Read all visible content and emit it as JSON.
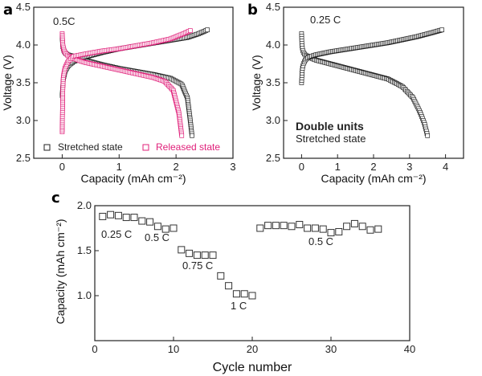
{
  "panels": [
    {
      "label": "a",
      "annotation": "0.5C",
      "xlabel": "Capacity (mAh cm⁻²)",
      "ylabel": "Voltage (V)",
      "legend": [
        {
          "name": "Stretched state",
          "color": "#222222"
        },
        {
          "name": "Released state",
          "color": "#e0207a"
        }
      ]
    },
    {
      "label": "b",
      "annotation": "0.25 C",
      "note_bold": "Double units",
      "note": "Stretched state",
      "xlabel": "Capacity (mAh cm⁻²)",
      "ylabel": "Voltage (V)"
    },
    {
      "label": "c",
      "xlabel": "Cycle number",
      "ylabel": "Capacity (mAh cm⁻²)",
      "rate_labels": [
        "0.25 C",
        "0.5 C",
        "0.75 C",
        "1 C",
        "0.5 C"
      ]
    }
  ],
  "chart_data": [
    {
      "type": "scatter",
      "panel": "a",
      "xlim": [
        -0.5,
        3
      ],
      "ylim": [
        2.5,
        4.5
      ],
      "xticks": [
        0,
        1,
        2,
        3
      ],
      "yticks": [
        2.5,
        3.0,
        3.5,
        4.0,
        4.5
      ],
      "series": [
        {
          "name": "Stretched state",
          "color": "#222222",
          "curves": [
            {
              "x": [
                0,
                0.01,
                0.03,
                0.06,
                0.1,
                0.2,
                0.4,
                0.7,
                1.0,
                1.3,
                1.6,
                1.9,
                2.1,
                2.2,
                2.25,
                2.28
              ],
              "y": [
                4.1,
                3.98,
                3.92,
                3.89,
                3.87,
                3.85,
                3.8,
                3.74,
                3.69,
                3.65,
                3.61,
                3.56,
                3.48,
                3.3,
                3.0,
                2.8
              ]
            },
            {
              "x": [
                0,
                0.01,
                0.02,
                0.05,
                0.1,
                0.2,
                0.4,
                0.7,
                1.0,
                1.4,
                1.8,
                2.2,
                2.4,
                2.55
              ],
              "y": [
                3.33,
                3.45,
                3.55,
                3.65,
                3.72,
                3.78,
                3.84,
                3.9,
                3.95,
                4.0,
                4.05,
                4.1,
                4.15,
                4.2
              ]
            }
          ]
        },
        {
          "name": "Released state",
          "color": "#e0207a",
          "curves": [
            {
              "x": [
                0,
                0.01,
                0.03,
                0.06,
                0.1,
                0.2,
                0.4,
                0.7,
                1.0,
                1.3,
                1.6,
                1.8,
                1.95,
                2.05,
                2.1
              ],
              "y": [
                4.15,
                4.0,
                3.93,
                3.89,
                3.86,
                3.82,
                3.77,
                3.72,
                3.67,
                3.62,
                3.57,
                3.52,
                3.4,
                3.1,
                2.8
              ]
            },
            {
              "x": [
                0,
                0.01,
                0.02,
                0.05,
                0.1,
                0.2,
                0.4,
                0.7,
                1.0,
                1.3,
                1.6,
                1.9,
                2.1,
                2.25
              ],
              "y": [
                2.85,
                3.4,
                3.58,
                3.7,
                3.78,
                3.85,
                3.88,
                3.92,
                3.95,
                3.99,
                4.03,
                4.08,
                4.14,
                4.19
              ]
            }
          ]
        }
      ]
    },
    {
      "type": "scatter",
      "panel": "b",
      "xlim": [
        -0.5,
        4.5
      ],
      "ylim": [
        2.5,
        4.5
      ],
      "xticks": [
        0,
        1,
        2,
        3,
        4
      ],
      "yticks": [
        2.5,
        3.0,
        3.5,
        4.0,
        4.5
      ],
      "series": [
        {
          "name": "Stretched state",
          "color": "#222222",
          "curves": [
            {
              "x": [
                0,
                0.01,
                0.03,
                0.06,
                0.1,
                0.2,
                0.4,
                0.8,
                1.2,
                1.6,
                2.0,
                2.4,
                2.8,
                3.1,
                3.3,
                3.42,
                3.5
              ],
              "y": [
                4.15,
                4.0,
                3.93,
                3.89,
                3.87,
                3.84,
                3.8,
                3.75,
                3.7,
                3.65,
                3.6,
                3.55,
                3.45,
                3.3,
                3.1,
                2.95,
                2.8
              ]
            },
            {
              "x": [
                0,
                0.01,
                0.02,
                0.05,
                0.1,
                0.2,
                0.4,
                0.8,
                1.2,
                1.6,
                2.0,
                2.4,
                2.8,
                3.2,
                3.6,
                3.9
              ],
              "y": [
                3.5,
                3.6,
                3.68,
                3.75,
                3.8,
                3.84,
                3.87,
                3.91,
                3.94,
                3.97,
                4.0,
                4.03,
                4.07,
                4.11,
                4.16,
                4.2
              ]
            }
          ]
        }
      ]
    },
    {
      "type": "scatter",
      "panel": "c",
      "xlim": [
        0,
        40
      ],
      "ylim": [
        0.5,
        2.0
      ],
      "xticks": [
        0,
        10,
        20,
        30,
        40
      ],
      "yticks": [
        1.0,
        1.5,
        2.0
      ],
      "x": [
        1,
        2,
        3,
        4,
        5,
        6,
        7,
        8,
        9,
        10,
        11,
        12,
        13,
        14,
        15,
        16,
        17,
        18,
        19,
        20,
        21,
        22,
        23,
        24,
        25,
        26,
        27,
        28,
        29,
        30,
        31,
        32,
        33,
        34,
        35,
        36
      ],
      "y": [
        1.88,
        1.9,
        1.89,
        1.87,
        1.87,
        1.83,
        1.82,
        1.77,
        1.74,
        1.75,
        1.51,
        1.47,
        1.45,
        1.45,
        1.45,
        1.22,
        1.11,
        1.02,
        1.02,
        1.0,
        1.75,
        1.78,
        1.78,
        1.78,
        1.77,
        1.79,
        1.75,
        1.75,
        1.74,
        1.7,
        1.71,
        1.77,
        1.8,
        1.77,
        1.73,
        1.74
      ]
    }
  ]
}
